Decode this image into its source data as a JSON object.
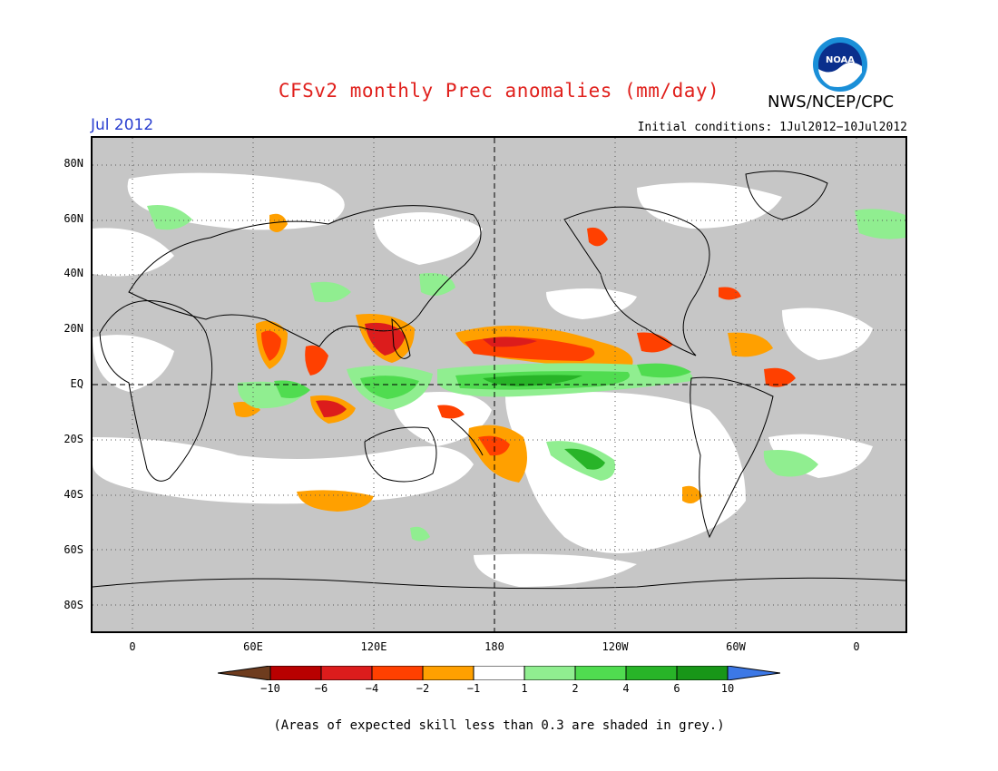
{
  "title": "CFSv2 monthly Prec anomalies (mm/day)",
  "agency": "NWS/NCEP/CPC",
  "logo_text": "NOAA",
  "month": "Jul 2012",
  "initial_conditions": "Initial conditions: 1Jul2012−10Jul2012",
  "lat_labels": [
    "80N",
    "60N",
    "40N",
    "20N",
    "EQ",
    "20S",
    "40S",
    "60S",
    "80S"
  ],
  "lon_labels": [
    "0",
    "60E",
    "120E",
    "180",
    "120W",
    "60W",
    "0"
  ],
  "legend": {
    "ticks": [
      "−10",
      "−6",
      "−4",
      "−2",
      "−1",
      "1",
      "2",
      "4",
      "6",
      "10"
    ],
    "colors": [
      "#6e3c1e",
      "#b80000",
      "#dc1c1c",
      "#ff4000",
      "#ffa000",
      "#ffffff",
      "#90ee90",
      "#50dc50",
      "#28b428",
      "#189618",
      "#3c78e6"
    ]
  },
  "note": "(Areas of expected skill less than 0.3 are shaded in grey.)",
  "palette": {
    "grey": "#c6c6c6",
    "title_red": "#e0201c",
    "month_blue": "#2a3fd0"
  }
}
